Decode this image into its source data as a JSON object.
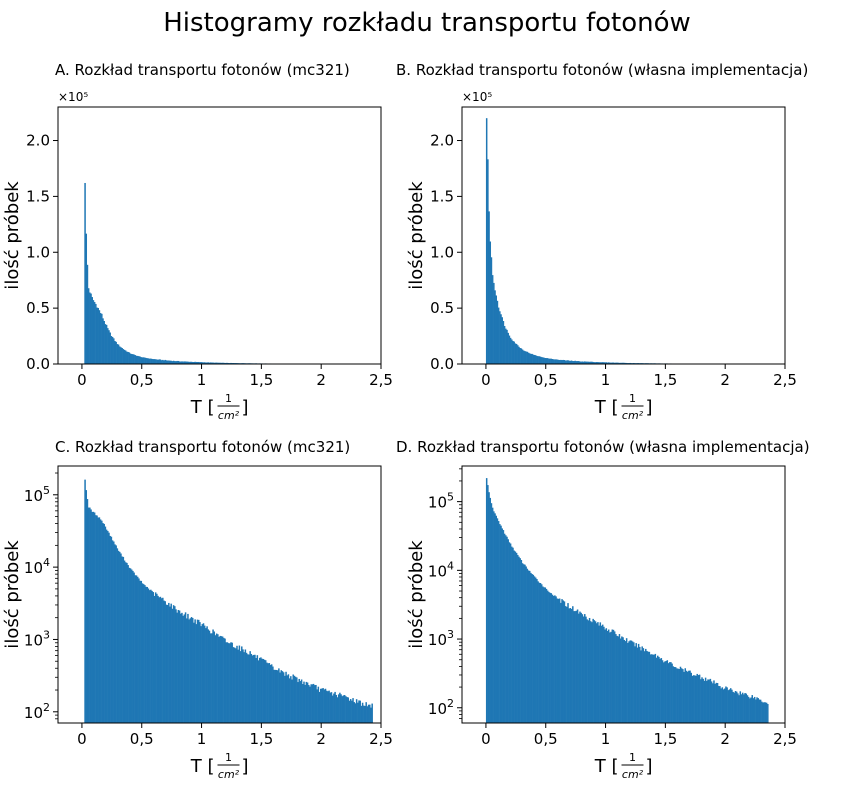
{
  "figure_title": "Histogramy rozkładu transportu fotonów",
  "bar_color": "#1f77b4",
  "chart_data": [
    {
      "id": "A",
      "type": "bar",
      "title": "A. Rozkład transportu fotonów (mc321)",
      "xlabel": "T",
      "xunit": "1/cm²",
      "ylabel": "ilość próbek",
      "yscale": "linear",
      "y_multiplier_label": "×10⁵",
      "xlim": [
        -0.2,
        2.5
      ],
      "ylim": [
        0,
        230000
      ],
      "xticks": [
        0,
        0.5,
        1,
        1.5,
        2,
        2.5
      ],
      "xtick_labels": [
        "0",
        "0,5",
        "1",
        "1,5",
        "2",
        "2,5"
      ],
      "yticks": [
        0,
        50000,
        100000,
        150000,
        200000
      ],
      "ytick_labels": [
        "0.0",
        "0.5",
        "1.0",
        "1.5",
        "2.0"
      ],
      "x_start": 0.02,
      "x_end": 2.42,
      "peak": 162000,
      "values_sampled": [
        {
          "x": 0.02,
          "y": 162000
        },
        {
          "x": 0.03,
          "y": 115000
        },
        {
          "x": 0.05,
          "y": 68000
        },
        {
          "x": 0.08,
          "y": 59000
        },
        {
          "x": 0.12,
          "y": 52000
        },
        {
          "x": 0.16,
          "y": 44000
        },
        {
          "x": 0.2,
          "y": 34000
        },
        {
          "x": 0.25,
          "y": 24000
        },
        {
          "x": 0.3,
          "y": 17000
        },
        {
          "x": 0.4,
          "y": 9500
        },
        {
          "x": 0.5,
          "y": 6000
        },
        {
          "x": 0.6,
          "y": 4300
        },
        {
          "x": 0.8,
          "y": 2500
        },
        {
          "x": 1.0,
          "y": 1600
        },
        {
          "x": 1.2,
          "y": 950
        },
        {
          "x": 1.4,
          "y": 650
        },
        {
          "x": 1.6,
          "y": 400
        },
        {
          "x": 1.8,
          "y": 280
        },
        {
          "x": 2.0,
          "y": 200
        },
        {
          "x": 2.2,
          "y": 160
        },
        {
          "x": 2.4,
          "y": 120
        }
      ]
    },
    {
      "id": "B",
      "type": "bar",
      "title": "B. Rozkład transportu fotonów (własna implementacja)",
      "xlabel": "T",
      "xunit": "1/cm²",
      "ylabel": "ilość próbek",
      "yscale": "linear",
      "y_multiplier_label": "×10⁵",
      "xlim": [
        -0.2,
        2.5
      ],
      "ylim": [
        0,
        230000
      ],
      "xticks": [
        0,
        0.5,
        1,
        1.5,
        2,
        2.5
      ],
      "xtick_labels": [
        "0",
        "0,5",
        "1",
        "1,5",
        "2",
        "2,5"
      ],
      "yticks": [
        0,
        50000,
        100000,
        150000,
        200000
      ],
      "ytick_labels": [
        "0.0",
        "0.5",
        "1.0",
        "1.5",
        "2.0"
      ],
      "x_start": 0.0,
      "x_end": 2.35,
      "peak": 220000,
      "values_sampled": [
        {
          "x": 0.0,
          "y": 220000
        },
        {
          "x": 0.01,
          "y": 178000
        },
        {
          "x": 0.03,
          "y": 110000
        },
        {
          "x": 0.05,
          "y": 80000
        },
        {
          "x": 0.1,
          "y": 52000
        },
        {
          "x": 0.15,
          "y": 35000
        },
        {
          "x": 0.2,
          "y": 24000
        },
        {
          "x": 0.3,
          "y": 13000
        },
        {
          "x": 0.4,
          "y": 8000
        },
        {
          "x": 0.5,
          "y": 5300
        },
        {
          "x": 0.6,
          "y": 3800
        },
        {
          "x": 0.8,
          "y": 2300
        },
        {
          "x": 1.0,
          "y": 1450
        },
        {
          "x": 1.2,
          "y": 900
        },
        {
          "x": 1.4,
          "y": 600
        },
        {
          "x": 1.6,
          "y": 380
        },
        {
          "x": 1.8,
          "y": 280
        },
        {
          "x": 2.0,
          "y": 190
        },
        {
          "x": 2.2,
          "y": 150
        },
        {
          "x": 2.35,
          "y": 120
        }
      ]
    },
    {
      "id": "C",
      "type": "bar",
      "title": "C. Rozkład transportu fotonów (mc321)",
      "xlabel": "T",
      "xunit": "1/cm²",
      "ylabel": "ilość próbek",
      "yscale": "log",
      "xlim": [
        -0.2,
        2.5
      ],
      "ylim": [
        70,
        250000
      ],
      "xticks": [
        0,
        0.5,
        1,
        1.5,
        2,
        2.5
      ],
      "xtick_labels": [
        "0",
        "0,5",
        "1",
        "1,5",
        "2",
        "2,5"
      ],
      "yticks": [
        100,
        1000,
        10000,
        100000
      ],
      "ytick_labels": [
        "10²",
        "10³",
        "10⁴",
        "10⁵"
      ],
      "x_start": 0.02,
      "x_end": 2.42,
      "peak": 162000,
      "values_sampled": [
        {
          "x": 0.02,
          "y": 162000
        },
        {
          "x": 0.03,
          "y": 115000
        },
        {
          "x": 0.05,
          "y": 68000
        },
        {
          "x": 0.08,
          "y": 59000
        },
        {
          "x": 0.12,
          "y": 52000
        },
        {
          "x": 0.16,
          "y": 44000
        },
        {
          "x": 0.2,
          "y": 34000
        },
        {
          "x": 0.25,
          "y": 24000
        },
        {
          "x": 0.3,
          "y": 17000
        },
        {
          "x": 0.4,
          "y": 9500
        },
        {
          "x": 0.5,
          "y": 6000
        },
        {
          "x": 0.6,
          "y": 4300
        },
        {
          "x": 0.8,
          "y": 2500
        },
        {
          "x": 1.0,
          "y": 1600
        },
        {
          "x": 1.2,
          "y": 950
        },
        {
          "x": 1.4,
          "y": 650
        },
        {
          "x": 1.6,
          "y": 400
        },
        {
          "x": 1.8,
          "y": 280
        },
        {
          "x": 2.0,
          "y": 200
        },
        {
          "x": 2.2,
          "y": 160
        },
        {
          "x": 2.4,
          "y": 120
        }
      ]
    },
    {
      "id": "D",
      "type": "bar",
      "title": "D. Rozkład transportu fotonów (własna implementacja)",
      "xlabel": "T",
      "xunit": "1/cm²",
      "ylabel": "ilość próbek",
      "yscale": "log",
      "xlim": [
        -0.2,
        2.5
      ],
      "ylim": [
        60,
        330000
      ],
      "xticks": [
        0,
        0.5,
        1,
        1.5,
        2,
        2.5
      ],
      "xtick_labels": [
        "0",
        "0,5",
        "1",
        "1,5",
        "2",
        "2,5"
      ],
      "yticks": [
        100,
        1000,
        10000,
        100000
      ],
      "ytick_labels": [
        "10²",
        "10³",
        "10⁴",
        "10⁵"
      ],
      "x_start": 0.0,
      "x_end": 2.35,
      "peak": 220000,
      "values_sampled": [
        {
          "x": 0.0,
          "y": 220000
        },
        {
          "x": 0.01,
          "y": 178000
        },
        {
          "x": 0.03,
          "y": 110000
        },
        {
          "x": 0.05,
          "y": 80000
        },
        {
          "x": 0.1,
          "y": 52000
        },
        {
          "x": 0.15,
          "y": 35000
        },
        {
          "x": 0.2,
          "y": 24000
        },
        {
          "x": 0.3,
          "y": 13000
        },
        {
          "x": 0.4,
          "y": 8000
        },
        {
          "x": 0.5,
          "y": 5300
        },
        {
          "x": 0.6,
          "y": 3800
        },
        {
          "x": 0.8,
          "y": 2300
        },
        {
          "x": 1.0,
          "y": 1450
        },
        {
          "x": 1.2,
          "y": 900
        },
        {
          "x": 1.4,
          "y": 600
        },
        {
          "x": 1.6,
          "y": 380
        },
        {
          "x": 1.8,
          "y": 280
        },
        {
          "x": 2.0,
          "y": 190
        },
        {
          "x": 2.2,
          "y": 150
        },
        {
          "x": 2.35,
          "y": 120
        }
      ]
    }
  ]
}
